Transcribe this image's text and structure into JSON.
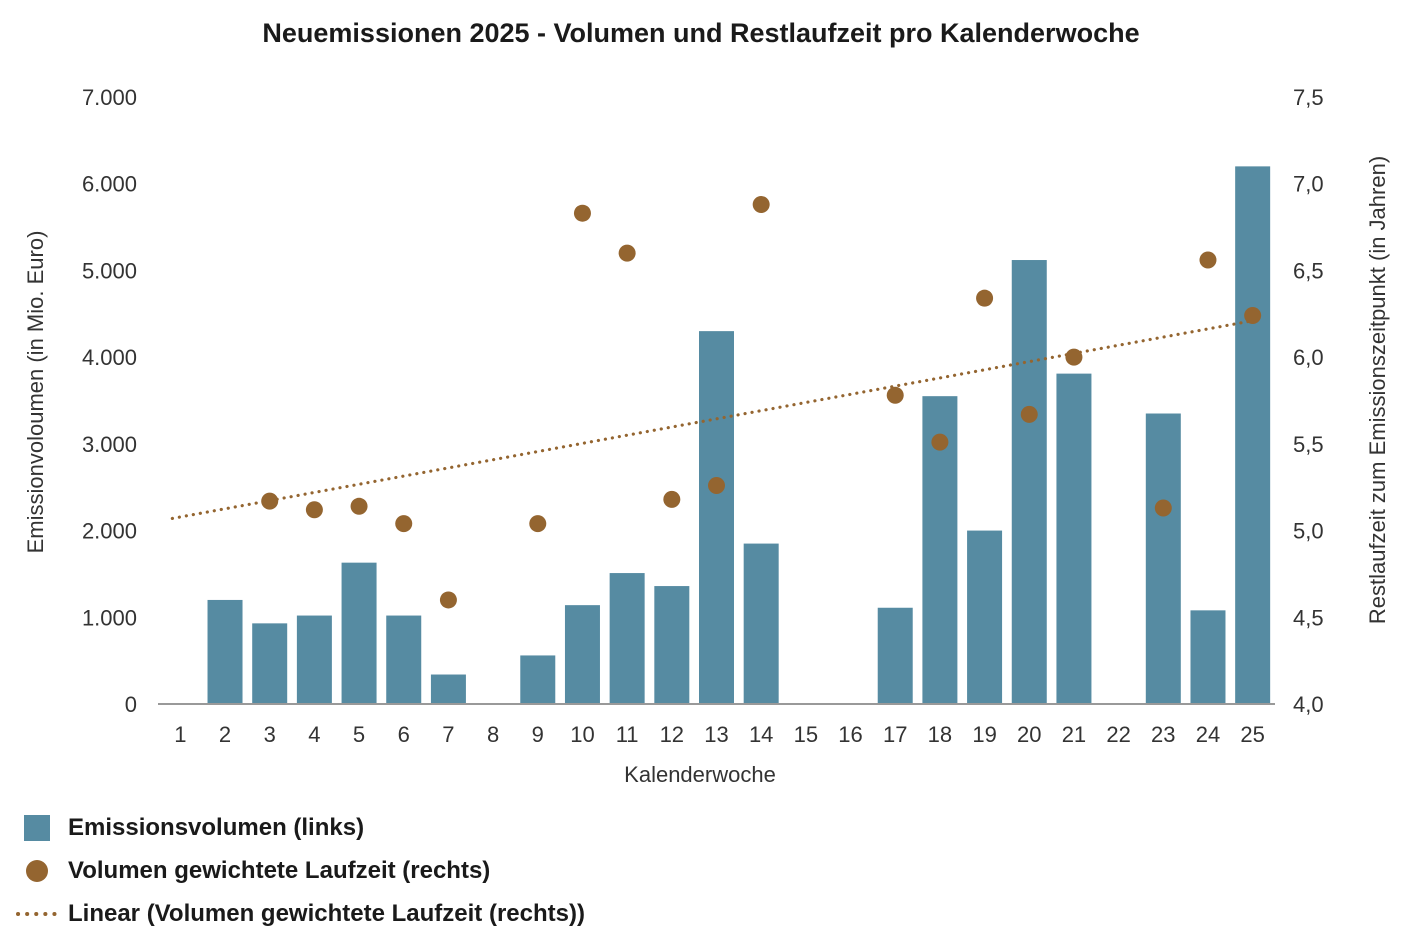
{
  "colors": {
    "bar": "#568ba2",
    "dot": "#946530",
    "trend": "#946530",
    "axis": "#999999"
  },
  "chart_data": {
    "type": "bar",
    "title": "Neuemissionen 2025 - Volumen und Restlaufzeit pro Kalenderwoche",
    "xlabel": "Kalenderwoche",
    "ylabel_left": "Emissionvoloumen (in Mio. Euro)",
    "ylabel_right": "Restlaufzeit zum Emissionszeitpunkt (in Jahren)",
    "ylim_left": [
      0,
      7000
    ],
    "ylim_right": [
      4.0,
      7.5
    ],
    "left_ticks": [
      "0",
      "1.000",
      "2.000",
      "3.000",
      "4.000",
      "5.000",
      "6.000",
      "7.000"
    ],
    "right_ticks": [
      "4,0",
      "4,5",
      "5,0",
      "5,5",
      "6,0",
      "6,5",
      "7,0",
      "7,5"
    ],
    "categories": [
      "1",
      "2",
      "3",
      "4",
      "5",
      "6",
      "7",
      "8",
      "9",
      "10",
      "11",
      "12",
      "13",
      "14",
      "15",
      "16",
      "17",
      "18",
      "19",
      "20",
      "21",
      "22",
      "23",
      "24",
      "25"
    ],
    "series": [
      {
        "name": "Emissionsvolumen (links)",
        "type": "bar",
        "axis": "left",
        "values": [
          0,
          1200,
          930,
          1020,
          1630,
          1020,
          340,
          0,
          560,
          1140,
          1510,
          1360,
          4300,
          1850,
          0,
          0,
          1110,
          3550,
          2000,
          5120,
          3810,
          0,
          3350,
          1080,
          6200
        ]
      },
      {
        "name": "Volumen gewichtete Laufzeit (rechts)",
        "type": "scatter",
        "axis": "right",
        "values": [
          null,
          null,
          5.17,
          5.12,
          5.14,
          5.04,
          4.6,
          null,
          5.04,
          6.83,
          6.6,
          5.18,
          5.26,
          6.88,
          null,
          null,
          5.78,
          5.51,
          6.34,
          5.67,
          6.0,
          null,
          5.13,
          6.56,
          6.24
        ]
      },
      {
        "name": "Linear (Volumen gewichtete Laufzeit (rechts))",
        "type": "trendline",
        "axis": "right",
        "start": {
          "x": "1",
          "y": 5.07
        },
        "end": {
          "x": "25",
          "y": 6.21
        }
      }
    ],
    "legend_position": "bottom-left",
    "grid": false
  },
  "legend": [
    {
      "label": "Emissionsvolumen (links)",
      "marker": "bar"
    },
    {
      "label": "Volumen gewichtete Laufzeit (rechts)",
      "marker": "dot"
    },
    {
      "label": "Linear (Volumen gewichtete Laufzeit (rechts))",
      "marker": "dotted-line"
    }
  ]
}
